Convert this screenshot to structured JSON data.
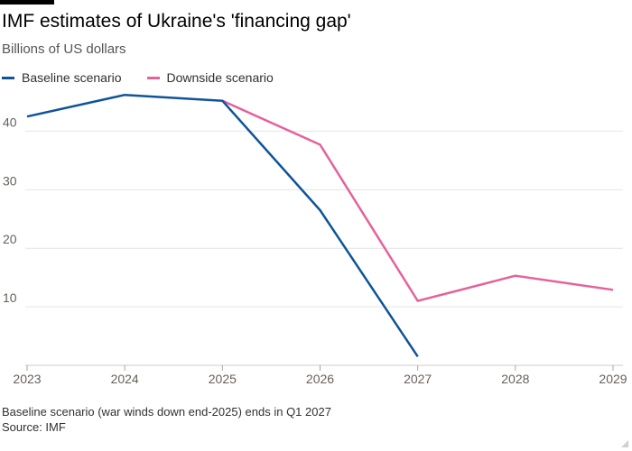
{
  "chart_data": {
    "type": "line",
    "title": "IMF estimates of Ukraine's 'financing gap'",
    "subtitle": "Billions of US dollars",
    "x": [
      2023,
      2024,
      2025,
      2026,
      2027,
      2028,
      2029
    ],
    "x_tick_labels": [
      "2023",
      "2024",
      "2025",
      "2026",
      "2027",
      "2028",
      "2029"
    ],
    "y_ticks": [
      10,
      20,
      30,
      40
    ],
    "y_tick_labels": [
      "10",
      "20",
      "30",
      "40"
    ],
    "xlim": [
      2023,
      2029
    ],
    "ylim": [
      0,
      47
    ],
    "grid": "horizontal",
    "legend_position": "top-left",
    "series": [
      {
        "name": "Baseline scenario",
        "color": "#0f5499",
        "points": [
          [
            2023,
            42.5
          ],
          [
            2024,
            46.2
          ],
          [
            2025,
            45.2
          ],
          [
            2026,
            26.5
          ],
          [
            2027,
            1.5
          ]
        ]
      },
      {
        "name": "Downside scenario",
        "color": "#e5619a",
        "points": [
          [
            2025,
            45.2
          ],
          [
            2026,
            37.7
          ],
          [
            2027,
            11.0
          ],
          [
            2028,
            15.3
          ],
          [
            2029,
            12.9
          ]
        ]
      }
    ],
    "note": "Baseline scenario (war winds down end-2025) ends in Q1 2027",
    "source": "Source: IMF"
  }
}
